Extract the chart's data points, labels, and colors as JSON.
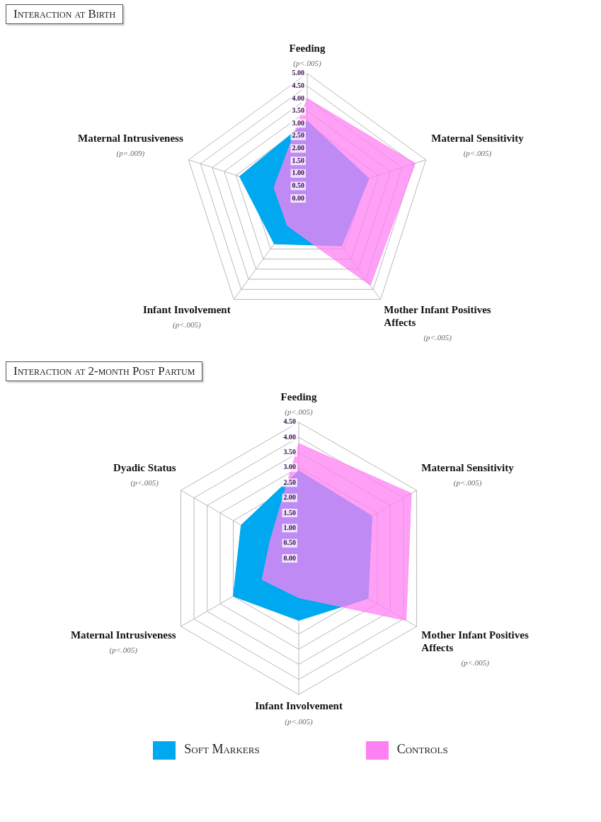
{
  "chart_data": [
    {
      "type": "radar",
      "title": "Interaction at Birth",
      "categories": [
        "Feeding",
        "Maternal Sensitivity",
        "Mother Infant Positives Affects",
        "Infant Involvement",
        "Maternal Intrusiveness"
      ],
      "series": [
        {
          "color": "#00a8f0",
          "values": [
            3.1,
            2.6,
            2.35,
            2.25,
            2.85
          ]
        },
        {
          "color": "#ff80f4",
          "values": [
            4.0,
            4.55,
            4.3,
            1.35,
            1.4
          ]
        }
      ],
      "annotations": [
        {
          "text": "(p<.005)",
          "x": "Feeding"
        },
        {
          "text": "(p<.005)",
          "x": "Maternal Sensitivity"
        },
        {
          "text": "(p<.005)",
          "x": "Mother Infant Positives Affects"
        },
        {
          "text": "(p<.005)",
          "x": "Infant Involvement"
        },
        {
          "text": "(p=.009)",
          "x": "Maternal Intrusiveness"
        }
      ],
      "ylim": [
        0,
        5
      ],
      "yticks": [
        {
          "value": 0,
          "label": "0.00"
        },
        {
          "value": 0.5,
          "label": "0.50"
        },
        {
          "value": 1,
          "label": "1.00"
        },
        {
          "value": 1.5,
          "label": "1.50"
        },
        {
          "value": 2,
          "label": "2.00"
        },
        {
          "value": 2.5,
          "label": "2.50"
        },
        {
          "value": 3,
          "label": "3.00"
        },
        {
          "value": 3.5,
          "label": "3.50"
        },
        {
          "value": 4,
          "label": "4.00"
        },
        {
          "value": 4.5,
          "label": "4.50"
        },
        {
          "value": 5,
          "label": "5.00"
        }
      ],
      "grid": true,
      "legend": false
    },
    {
      "type": "radar",
      "title": "Interaction at 2-month Post Partum",
      "categories": [
        "Feeding",
        "Maternal Sensitivity",
        "Mother Infant Positives Affects",
        "Infant Involvement",
        "Maternal Intrusiveness",
        "Dyadic Status"
      ],
      "series": [
        {
          "name": "Soft Markers",
          "color": "#00a8f0",
          "values": [
            2.9,
            2.8,
            2.65,
            2.05,
            2.5,
            2.2
          ]
        },
        {
          "name": "Controls",
          "color": "#ff80f4",
          "values": [
            3.8,
            4.3,
            4.1,
            1.3,
            1.4,
            1.1
          ]
        }
      ],
      "annotations": [
        {
          "text": "(p<.005)",
          "x": "Feeding"
        },
        {
          "text": "(p<.005)",
          "x": "Maternal Sensitivity"
        },
        {
          "text": "(p<.005)",
          "x": "Mother Infant Positives Affects"
        },
        {
          "text": "(p<.005)",
          "x": "Infant Involvement"
        },
        {
          "text": "(p<.005)",
          "x": "Maternal Intrusiveness"
        },
        {
          "text": "(p<.005)",
          "x": "Dyadic Status"
        }
      ],
      "ylim": [
        0,
        4.5
      ],
      "yticks": [
        {
          "value": 0,
          "label": "0.00"
        },
        {
          "value": 0.5,
          "label": "0.50"
        },
        {
          "value": 1,
          "label": "1.00"
        },
        {
          "value": 1.5,
          "label": "1.50"
        },
        {
          "value": 2,
          "label": "2.00"
        },
        {
          "value": 2.5,
          "label": "2.50"
        },
        {
          "value": 3,
          "label": "3.00"
        },
        {
          "value": 3.5,
          "label": "3.50"
        },
        {
          "value": 4,
          "label": "4.00"
        },
        {
          "value": 4.5,
          "label": "4.50"
        }
      ],
      "grid": true,
      "legend": "bottom"
    }
  ]
}
